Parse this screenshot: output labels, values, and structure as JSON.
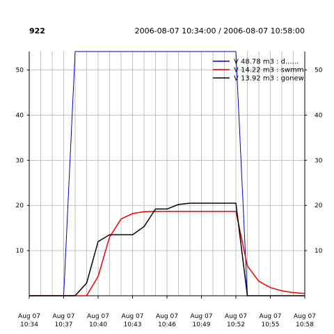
{
  "header": {
    "id_label": "922",
    "time_range": "2006-08-07 10:34:00 / 2006-08-07 10:58:00"
  },
  "chart_data": {
    "type": "line",
    "title": "",
    "xlabel": "",
    "ylabel": "",
    "x": [
      "10:34",
      "10:35",
      "10:36",
      "10:37",
      "10:38",
      "10:39",
      "10:40",
      "10:41",
      "10:42",
      "10:43",
      "10:44",
      "10:45",
      "10:46",
      "10:47",
      "10:48",
      "10:49",
      "10:50",
      "10:51",
      "10:52",
      "10:53",
      "10:54",
      "10:55",
      "10:56",
      "10:57",
      "10:58"
    ],
    "x_tick_labels": [
      {
        "date": "Aug 07",
        "time": "10:34"
      },
      {
        "date": "Aug 07",
        "time": "10:37"
      },
      {
        "date": "Aug 07",
        "time": "10:40"
      },
      {
        "date": "Aug 07",
        "time": "10:43"
      },
      {
        "date": "Aug 07",
        "time": "10:46"
      },
      {
        "date": "Aug 07",
        "time": "10:49"
      },
      {
        "date": "Aug 07",
        "time": "10:52"
      },
      {
        "date": "Aug 07",
        "time": "10:55"
      },
      {
        "date": "Aug 07",
        "time": "10:58"
      }
    ],
    "x_tick_values": [
      "10:34",
      "10:37",
      "10:40",
      "10:43",
      "10:46",
      "10:49",
      "10:52",
      "10:55",
      "10:58"
    ],
    "yticks": [
      10,
      20,
      30,
      40,
      50
    ],
    "ylim": [
      0,
      54.1
    ],
    "grid": true,
    "legend_position": "top-right",
    "series": [
      {
        "name": "V 48.78 m3 : d......",
        "color": "#0000cc",
        "points": [
          [
            "10:34",
            0
          ],
          [
            "10:37",
            0
          ],
          [
            "10:38",
            54.1
          ],
          [
            "10:52",
            54.1
          ],
          [
            "10:53",
            0
          ],
          [
            "10:58",
            0
          ]
        ]
      },
      {
        "name": "V 14.22 m3 : swmm",
        "color": "#ee0000",
        "points": [
          [
            "10:34",
            0
          ],
          [
            "10:39",
            0
          ],
          [
            "10:40",
            4.3
          ],
          [
            "10:41",
            13.0
          ],
          [
            "10:42",
            17.0
          ],
          [
            "10:43",
            18.2
          ],
          [
            "10:44",
            18.6
          ],
          [
            "10:45",
            18.7
          ],
          [
            "10:46",
            18.7
          ],
          [
            "10:47",
            18.7
          ],
          [
            "10:48",
            18.7
          ],
          [
            "10:49",
            18.7
          ],
          [
            "10:50",
            18.7
          ],
          [
            "10:51",
            18.7
          ],
          [
            "10:52",
            18.7
          ],
          [
            "10:53",
            6.6
          ],
          [
            "10:54",
            3.2
          ],
          [
            "10:55",
            1.8
          ],
          [
            "10:56",
            1.1
          ],
          [
            "10:57",
            0.7
          ],
          [
            "10:58",
            0.5
          ]
        ]
      },
      {
        "name": "V 13.92 m3 : gonew",
        "color": "#000000",
        "points": [
          [
            "10:34",
            0
          ],
          [
            "10:38",
            0
          ],
          [
            "10:39",
            2.8
          ],
          [
            "10:40",
            12.0
          ],
          [
            "10:41",
            13.5
          ],
          [
            "10:42",
            13.5
          ],
          [
            "10:43",
            13.5
          ],
          [
            "10:44",
            15.3
          ],
          [
            "10:45",
            19.2
          ],
          [
            "10:46",
            19.2
          ],
          [
            "10:47",
            20.2
          ],
          [
            "10:48",
            20.5
          ],
          [
            "10:49",
            20.5
          ],
          [
            "10:50",
            20.5
          ],
          [
            "10:51",
            20.5
          ],
          [
            "10:52",
            20.5
          ],
          [
            "10:53",
            0
          ],
          [
            "10:58",
            0
          ]
        ]
      }
    ]
  }
}
